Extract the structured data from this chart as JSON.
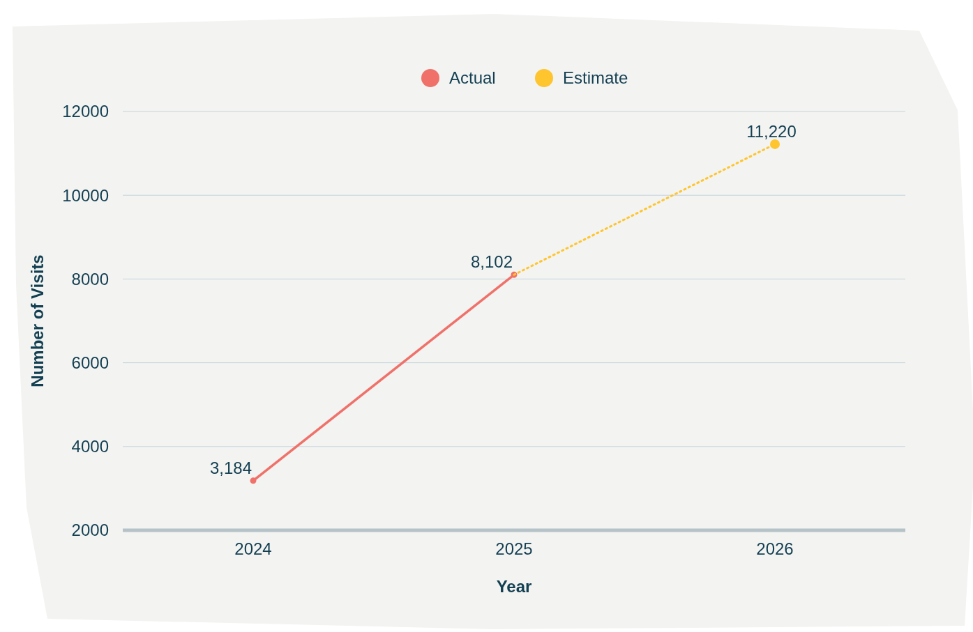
{
  "chart_data": {
    "type": "line",
    "xlabel": "Year",
    "ylabel": "Number of Visits",
    "categories": [
      "2024",
      "2025",
      "2026"
    ],
    "series": [
      {
        "name": "Actual",
        "color": "#f0716a",
        "values": [
          3184,
          8102,
          null
        ],
        "value_labels": [
          "3,184",
          "8,102",
          null
        ],
        "line_style": "solid",
        "marker": "circle"
      },
      {
        "name": "Estimate",
        "color": "#fec52e",
        "values": [
          null,
          8102,
          11220
        ],
        "value_labels": [
          null,
          null,
          "11,220"
        ],
        "line_style": "dotted",
        "marker": "circle"
      }
    ],
    "ylim": [
      2000,
      12000
    ],
    "yticks": [
      2000,
      4000,
      6000,
      8000,
      10000,
      12000
    ],
    "grid": "y",
    "legend": "top"
  }
}
